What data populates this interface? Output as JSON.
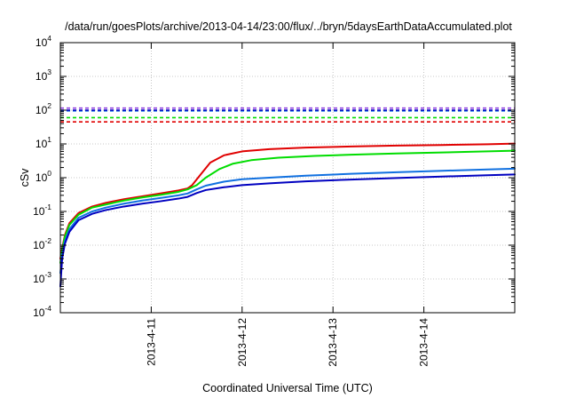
{
  "chart_data": {
    "type": "line",
    "title": "/data/run/goesPlots/archive/2013-04-14/23:00/flux/../bryn/5daysEarthDataAccumulated.plot",
    "xlabel": "Coordinated Universal Time (UTC)",
    "ylabel": "cSv",
    "y_scale": "log",
    "ylim": [
      0.0001,
      10000
    ],
    "x_range_days_after_2013_04_10": [
      0,
      5
    ],
    "yticks": [
      {
        "base": "10",
        "exp": "-4",
        "value": 0.0001
      },
      {
        "base": "10",
        "exp": "-3",
        "value": 0.001
      },
      {
        "base": "10",
        "exp": "-2",
        "value": 0.01
      },
      {
        "base": "10",
        "exp": "-1",
        "value": 0.1
      },
      {
        "base": "10",
        "exp": "0",
        "value": 1
      },
      {
        "base": "10",
        "exp": "1",
        "value": 10
      },
      {
        "base": "10",
        "exp": "2",
        "value": 100
      },
      {
        "base": "10",
        "exp": "3",
        "value": 1000
      },
      {
        "base": "10",
        "exp": "4",
        "value": 10000
      }
    ],
    "xticks": [
      {
        "label": "2013-4-11",
        "value": 1
      },
      {
        "label": "2013-4-12",
        "value": 2
      },
      {
        "label": "2013-4-13",
        "value": 3
      },
      {
        "label": "2013-4-14",
        "value": 4
      }
    ],
    "grid": true,
    "legend": "none",
    "reference_lines": [
      {
        "color": "#e00000",
        "value": 45
      },
      {
        "color": "#00dd00",
        "value": 60
      },
      {
        "color": "#1070e0",
        "value": 95
      },
      {
        "color": "#0000c0",
        "value": 100
      },
      {
        "color": "#9040e0",
        "value": 115
      }
    ],
    "series": [
      {
        "color": "#e00000",
        "x": [
          0,
          0.02,
          0.05,
          0.1,
          0.2,
          0.35,
          0.5,
          0.7,
          0.9,
          1.1,
          1.3,
          1.4,
          1.45,
          1.55,
          1.65,
          1.8,
          2.0,
          2.3,
          2.7,
          3.2,
          3.7,
          4.2,
          4.7,
          5.0
        ],
        "y": [
          0.004,
          0.008,
          0.02,
          0.045,
          0.09,
          0.14,
          0.18,
          0.23,
          0.28,
          0.34,
          0.42,
          0.48,
          0.6,
          1.3,
          2.8,
          4.6,
          6.0,
          7.0,
          7.8,
          8.4,
          8.9,
          9.3,
          9.8,
          10.2
        ]
      },
      {
        "color": "#00dd00",
        "x": [
          0,
          0.02,
          0.05,
          0.1,
          0.2,
          0.35,
          0.5,
          0.7,
          0.9,
          1.1,
          1.3,
          1.4,
          1.5,
          1.6,
          1.75,
          1.9,
          2.1,
          2.4,
          2.8,
          3.2,
          3.7,
          4.2,
          4.7,
          5.0
        ],
        "y": [
          0.003,
          0.007,
          0.018,
          0.04,
          0.08,
          0.13,
          0.16,
          0.21,
          0.26,
          0.31,
          0.38,
          0.45,
          0.6,
          1.0,
          1.8,
          2.6,
          3.3,
          3.9,
          4.4,
          4.8,
          5.2,
          5.6,
          6.0,
          6.3
        ]
      },
      {
        "color": "#1070e0",
        "x": [
          0,
          0.02,
          0.05,
          0.1,
          0.2,
          0.35,
          0.5,
          0.7,
          0.9,
          1.1,
          1.3,
          1.4,
          1.5,
          1.6,
          1.8,
          2.0,
          2.3,
          2.7,
          3.2,
          3.7,
          4.2,
          4.7,
          5.0
        ],
        "y": [
          0.0015,
          0.005,
          0.013,
          0.03,
          0.065,
          0.1,
          0.13,
          0.17,
          0.21,
          0.25,
          0.3,
          0.34,
          0.45,
          0.58,
          0.76,
          0.9,
          1.0,
          1.15,
          1.3,
          1.45,
          1.6,
          1.75,
          1.85
        ]
      },
      {
        "color": "#0000c0",
        "x": [
          0,
          0.02,
          0.05,
          0.1,
          0.2,
          0.35,
          0.5,
          0.7,
          0.9,
          1.1,
          1.3,
          1.4,
          1.5,
          1.6,
          1.8,
          2.0,
          2.3,
          2.7,
          3.2,
          3.7,
          4.2,
          4.7,
          5.0
        ],
        "y": [
          0.0006,
          0.004,
          0.011,
          0.025,
          0.055,
          0.085,
          0.11,
          0.14,
          0.17,
          0.2,
          0.24,
          0.27,
          0.35,
          0.43,
          0.52,
          0.6,
          0.68,
          0.78,
          0.88,
          0.98,
          1.08,
          1.18,
          1.25
        ]
      }
    ]
  }
}
